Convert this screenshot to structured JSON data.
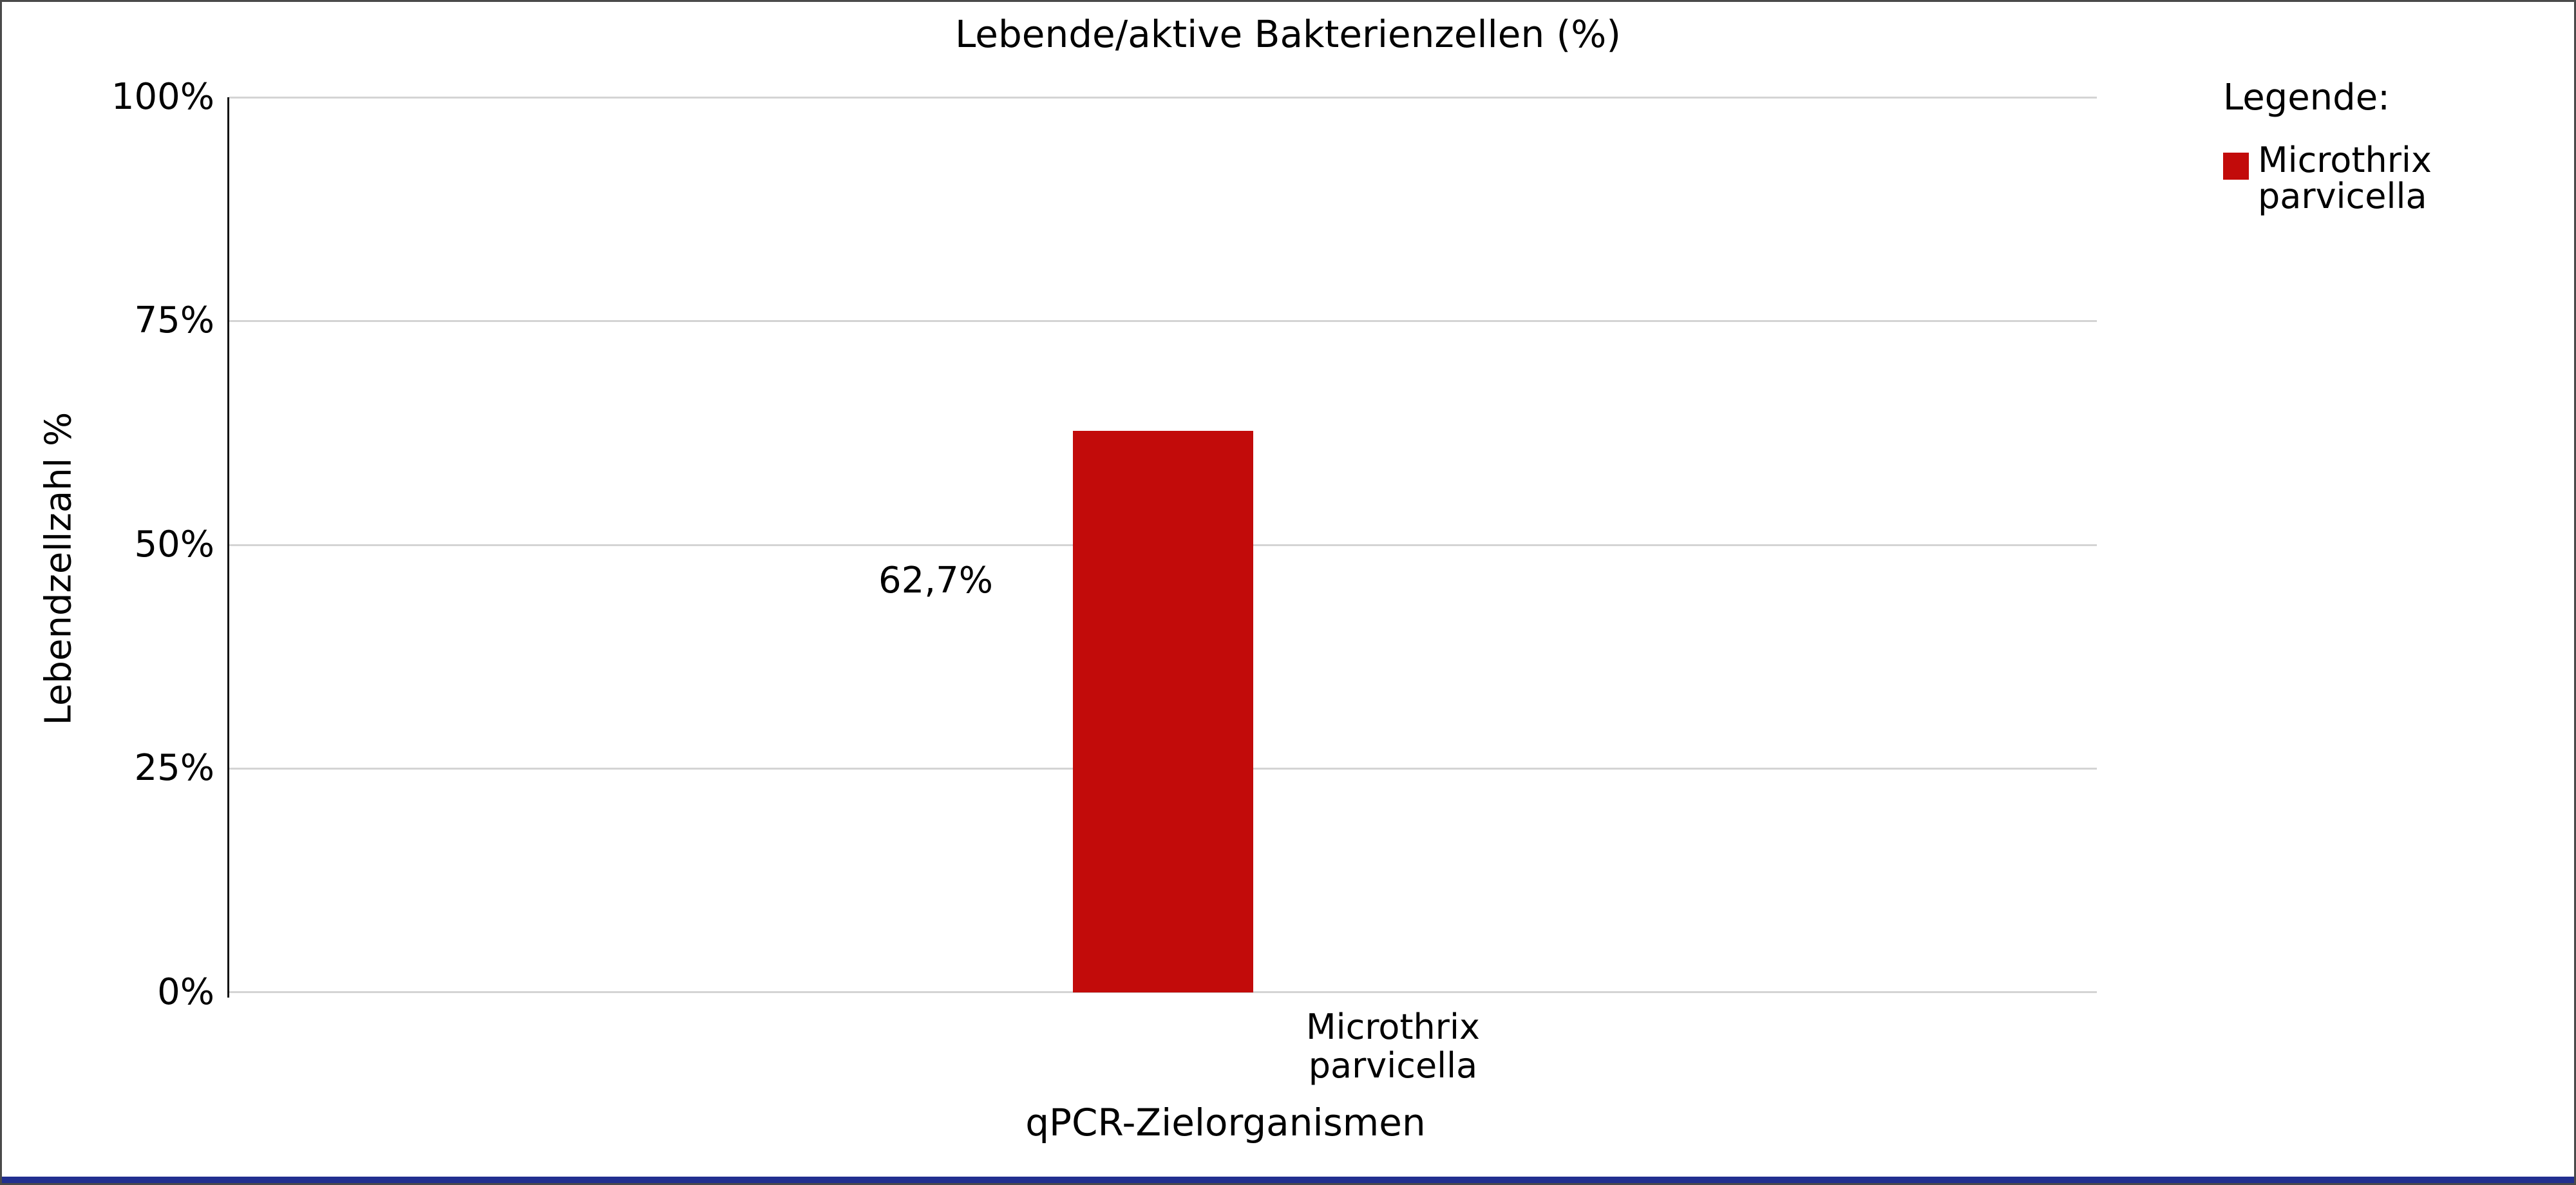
{
  "chart_data": {
    "type": "bar",
    "title": "Lebende/aktive Bakterienzellen (%)",
    "categories": [
      "Microthrix parvicella"
    ],
    "values": [
      62.7
    ],
    "value_labels": [
      "62,7%"
    ],
    "xlabel": "qPCR-Zielorganismen",
    "ylabel": "Lebendzellzahl %",
    "ylim": [
      0,
      100
    ],
    "yticks": [
      "100%",
      "75%",
      "50%",
      "25%",
      "0%"
    ],
    "grid": true,
    "legend_position": "right",
    "bar_color": "#c20b0a"
  },
  "legend": {
    "title": "Legende:",
    "entries": [
      {
        "label": "Microthrix parvicella",
        "color": "#c20b0a"
      }
    ]
  },
  "colors": {
    "bar": "#c20b0a",
    "gridline": "#d4d4d4",
    "axis_line": "#111111",
    "frame_border": "#4a4a4a",
    "bottom_strip": "#212f8f",
    "background": "#ffffff",
    "text": "#000000"
  }
}
